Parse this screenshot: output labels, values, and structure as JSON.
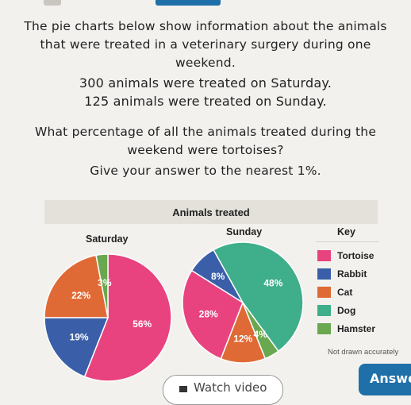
{
  "question": {
    "lines": [
      "The pie charts below show information about the animals",
      "that were treated in a veterinary surgery during one",
      "weekend.",
      "300 animals were treated on Saturday.",
      "125 animals were treated on Sunday.",
      "What percentage of all the animals treated during the",
      "weekend were tortoises?",
      "Give your answer to the nearest 1%."
    ]
  },
  "figure": {
    "title": "Animals treated",
    "saturday_label": "Saturday",
    "sunday_label": "Sunday",
    "key_title": "Key",
    "note": "Not drawn accurately"
  },
  "key": [
    {
      "label": "Tortoise",
      "color": "#e8437f",
      "icon": "solid-swatch"
    },
    {
      "label": "Rabbit",
      "color": "#3a5fa8",
      "icon": "striped-swatch"
    },
    {
      "label": "Cat",
      "color": "#e06a35",
      "icon": "dotted-swatch"
    },
    {
      "label": "Dog",
      "color": "#3fae8a",
      "icon": "solid-swatch"
    },
    {
      "label": "Hamster",
      "color": "#6aa84f",
      "icon": "checked-swatch"
    }
  ],
  "chart_data": [
    {
      "type": "pie",
      "title": "Saturday",
      "categories": [
        "Tortoise",
        "Rabbit",
        "Cat",
        "Hamster"
      ],
      "values": [
        56,
        19,
        22,
        3
      ],
      "labels": [
        "56%",
        "19%",
        "22%",
        "3%"
      ]
    },
    {
      "type": "pie",
      "title": "Sunday",
      "categories": [
        "Cat",
        "Tortoise",
        "Rabbit",
        "Dog",
        "Hamster"
      ],
      "values": [
        12,
        28,
        8,
        48,
        4
      ],
      "labels": [
        "12%",
        "28%",
        "8%",
        "48%",
        "4%"
      ]
    }
  ],
  "buttons": {
    "watch_video": "Watch video",
    "answer": "Answer"
  }
}
